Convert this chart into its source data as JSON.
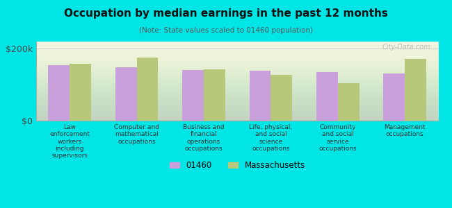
{
  "title": "Occupation by median earnings in the past 12 months",
  "subtitle": "(Note: State values scaled to 01460 population)",
  "background_color": "#00e5e5",
  "categories": [
    "Law\nenforcement\nworkers\nincluding\nsupervisors",
    "Computer and\nmathematical\noccupations",
    "Business and\nfinancial\noperations\noccupations",
    "Life, physical,\nand social\nscience\noccupations",
    "Community\nand social\nservice\noccupations",
    "Management\noccupations"
  ],
  "values_01460": [
    155000,
    148000,
    140000,
    138000,
    135000,
    132000
  ],
  "values_mass": [
    158000,
    175000,
    143000,
    128000,
    105000,
    172000
  ],
  "color_01460": "#c9a0dc",
  "color_mass": "#b8c87a",
  "ylabel_text": "$200k",
  "y0_text": "$0",
  "ylim": [
    0,
    220000
  ],
  "legend_01460": "01460",
  "legend_mass": "Massachusetts",
  "watermark": "City-Data.com"
}
